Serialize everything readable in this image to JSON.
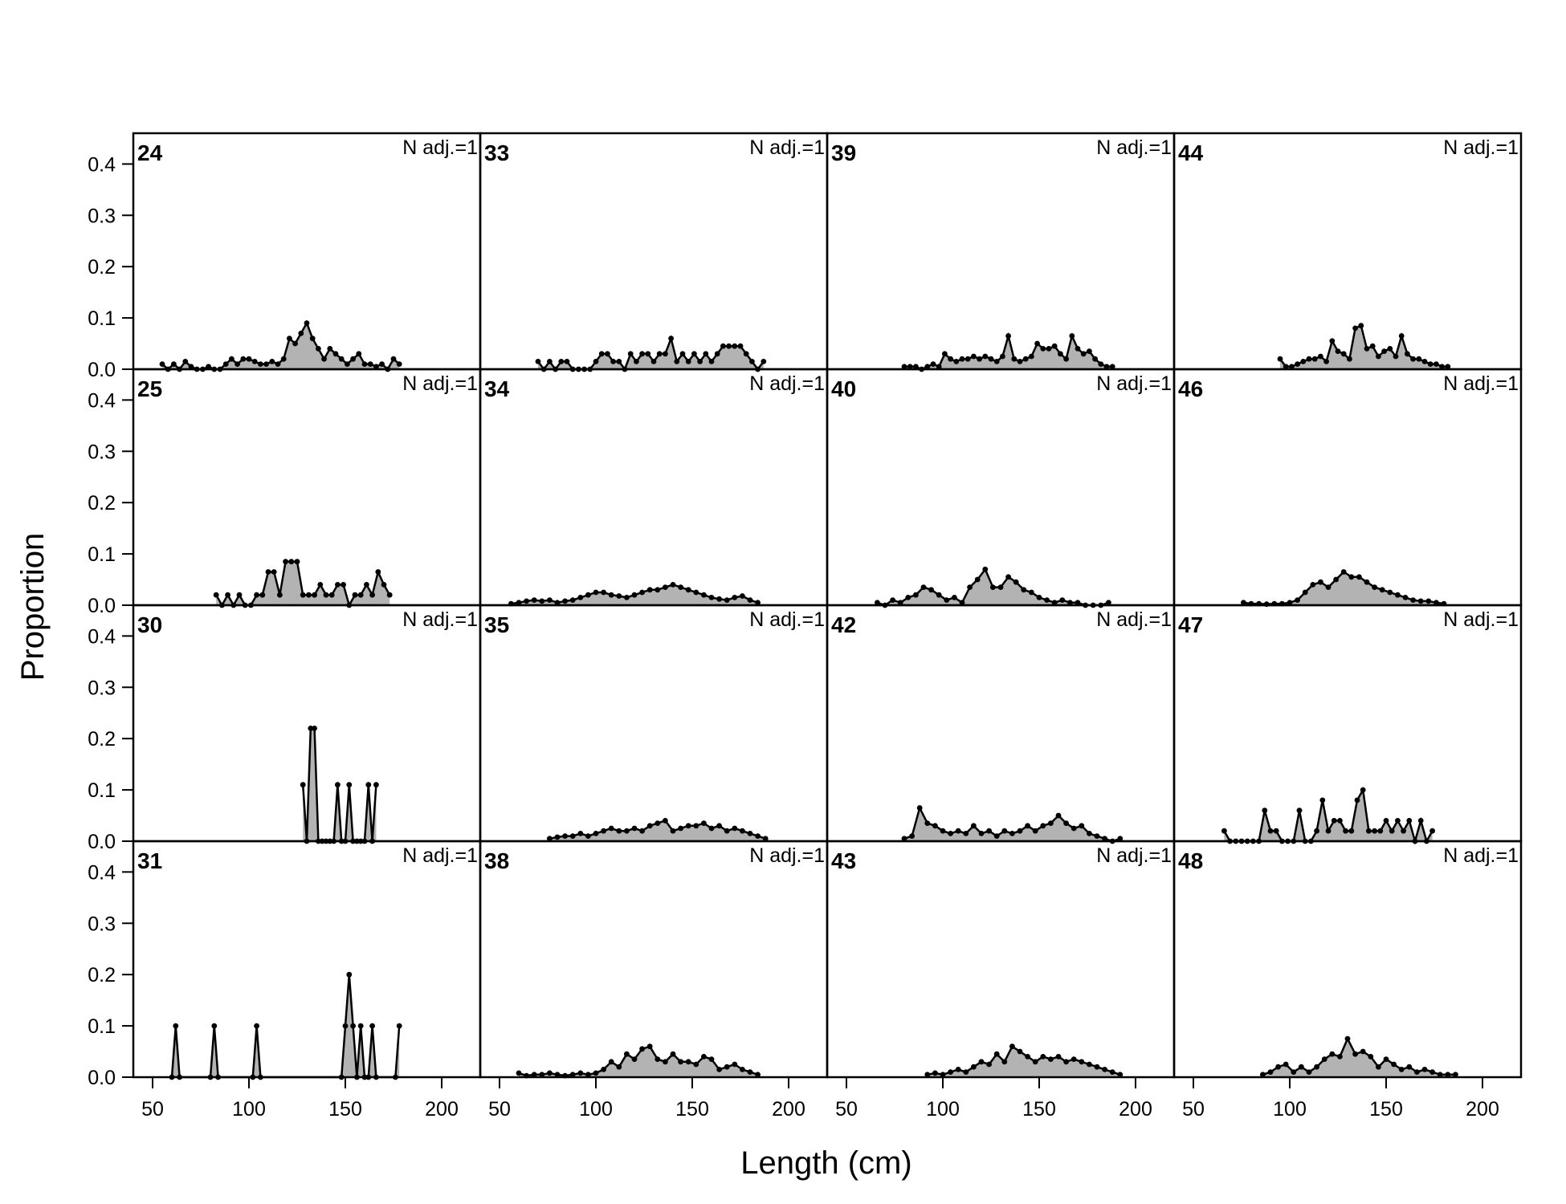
{
  "chart_data": {
    "type": "area",
    "xlabel": "Length (cm)",
    "ylabel": "Proportion",
    "xlim": [
      40,
      220
    ],
    "ylim": [
      0,
      0.46
    ],
    "xticks": [
      50,
      100,
      150,
      200
    ],
    "xtick_labels": [
      "50",
      "100",
      "150",
      "200"
    ],
    "yticks": [
      0.0,
      0.1,
      0.2,
      0.3,
      0.4
    ],
    "ytick_labels": [
      "0.0",
      "0.1",
      "0.2",
      "0.3",
      "0.4"
    ],
    "layout": {
      "rows": 4,
      "cols": 4,
      "order": "column-major"
    },
    "fill_color": "#b3b3b3",
    "line_color": "#000000",
    "panels": [
      {
        "label": "24",
        "annotation": "N adj.=1",
        "x": [
          55,
          58,
          61,
          64,
          67,
          70,
          73,
          76,
          79,
          82,
          85,
          88,
          91,
          94,
          97,
          100,
          103,
          106,
          109,
          112,
          115,
          118,
          121,
          124,
          127,
          130,
          133,
          136,
          139,
          142,
          145,
          148,
          151,
          154,
          157,
          160,
          163,
          166,
          169,
          172,
          175,
          178
        ],
        "y": [
          0.01,
          0.0,
          0.01,
          0.0,
          0.015,
          0.005,
          0.0,
          0.0,
          0.005,
          0.0,
          0.0,
          0.01,
          0.02,
          0.01,
          0.02,
          0.02,
          0.015,
          0.01,
          0.01,
          0.015,
          0.01,
          0.02,
          0.06,
          0.05,
          0.07,
          0.09,
          0.06,
          0.04,
          0.02,
          0.04,
          0.03,
          0.02,
          0.01,
          0.02,
          0.03,
          0.01,
          0.01,
          0.005,
          0.01,
          0.0,
          0.02,
          0.01
        ]
      },
      {
        "label": "25",
        "annotation": "N adj.=1",
        "x": [
          83,
          86,
          89,
          92,
          95,
          98,
          101,
          104,
          107,
          110,
          113,
          116,
          119,
          122,
          125,
          128,
          131,
          134,
          137,
          140,
          143,
          146,
          149,
          152,
          155,
          158,
          161,
          164,
          167,
          170,
          173
        ],
        "y": [
          0.02,
          0.0,
          0.02,
          0.0,
          0.02,
          0.0,
          0.0,
          0.02,
          0.02,
          0.065,
          0.065,
          0.02,
          0.085,
          0.085,
          0.085,
          0.02,
          0.02,
          0.02,
          0.04,
          0.02,
          0.02,
          0.04,
          0.04,
          0.0,
          0.02,
          0.02,
          0.04,
          0.02,
          0.065,
          0.04,
          0.02
        ]
      },
      {
        "label": "30",
        "annotation": "N adj.=1",
        "x": [
          128,
          130,
          132,
          134,
          136,
          138,
          140,
          142,
          144,
          146,
          148,
          150,
          152,
          154,
          156,
          158,
          160,
          162,
          164,
          166
        ],
        "y": [
          0.11,
          0.0,
          0.22,
          0.22,
          0.0,
          0.0,
          0.0,
          0.0,
          0.0,
          0.11,
          0.0,
          0.0,
          0.11,
          0.0,
          0.0,
          0.0,
          0.0,
          0.11,
          0.0,
          0.11
        ]
      },
      {
        "label": "31",
        "annotation": "N adj.=1",
        "x": [
          60,
          62,
          64,
          80,
          82,
          84,
          102,
          104,
          106,
          148,
          150,
          152,
          154,
          156,
          158,
          160,
          162,
          164,
          166,
          176,
          178
        ],
        "y": [
          0.0,
          0.1,
          0.0,
          0.0,
          0.1,
          0.0,
          0.0,
          0.1,
          0.0,
          0.0,
          0.1,
          0.2,
          0.1,
          0.0,
          0.1,
          0.0,
          0.0,
          0.1,
          0.0,
          0.0,
          0.1
        ]
      },
      {
        "label": "33",
        "annotation": "N adj.=1",
        "x": [
          70,
          73,
          76,
          79,
          82,
          85,
          88,
          91,
          94,
          97,
          100,
          103,
          106,
          109,
          112,
          115,
          118,
          121,
          124,
          127,
          130,
          133,
          136,
          139,
          142,
          145,
          148,
          151,
          154,
          157,
          160,
          163,
          166,
          169,
          172,
          175,
          178,
          181,
          184,
          187
        ],
        "y": [
          0.015,
          0.0,
          0.015,
          0.0,
          0.015,
          0.015,
          0.0,
          0.0,
          0.0,
          0.0,
          0.015,
          0.03,
          0.03,
          0.015,
          0.015,
          0.0,
          0.03,
          0.015,
          0.03,
          0.03,
          0.015,
          0.03,
          0.03,
          0.06,
          0.015,
          0.03,
          0.015,
          0.03,
          0.015,
          0.03,
          0.015,
          0.03,
          0.045,
          0.045,
          0.045,
          0.045,
          0.03,
          0.015,
          0.0,
          0.015
        ]
      },
      {
        "label": "34",
        "annotation": "N adj.=1",
        "x": [
          56,
          60,
          64,
          68,
          72,
          76,
          80,
          84,
          88,
          92,
          96,
          100,
          104,
          108,
          112,
          116,
          120,
          124,
          128,
          132,
          136,
          140,
          144,
          148,
          152,
          156,
          160,
          164,
          168,
          172,
          176,
          180,
          184
        ],
        "y": [
          0.003,
          0.005,
          0.008,
          0.01,
          0.008,
          0.01,
          0.005,
          0.008,
          0.01,
          0.015,
          0.02,
          0.025,
          0.025,
          0.02,
          0.018,
          0.015,
          0.02,
          0.025,
          0.03,
          0.03,
          0.035,
          0.04,
          0.035,
          0.03,
          0.025,
          0.02,
          0.015,
          0.012,
          0.01,
          0.015,
          0.018,
          0.01,
          0.005
        ]
      },
      {
        "label": "35",
        "annotation": "N adj.=1",
        "x": [
          76,
          80,
          84,
          88,
          92,
          96,
          100,
          104,
          108,
          112,
          116,
          120,
          124,
          128,
          132,
          136,
          140,
          144,
          148,
          152,
          156,
          160,
          164,
          168,
          172,
          176,
          180,
          184,
          188
        ],
        "y": [
          0.005,
          0.008,
          0.01,
          0.01,
          0.015,
          0.01,
          0.015,
          0.02,
          0.025,
          0.02,
          0.02,
          0.025,
          0.02,
          0.03,
          0.035,
          0.04,
          0.02,
          0.025,
          0.03,
          0.03,
          0.035,
          0.025,
          0.03,
          0.02,
          0.025,
          0.02,
          0.015,
          0.01,
          0.005
        ]
      },
      {
        "label": "38",
        "annotation": "N adj.=1",
        "x": [
          60,
          64,
          68,
          72,
          76,
          80,
          84,
          88,
          92,
          96,
          100,
          104,
          108,
          112,
          116,
          120,
          124,
          128,
          132,
          136,
          140,
          144,
          148,
          152,
          156,
          160,
          164,
          168,
          172,
          176,
          180,
          184
        ],
        "y": [
          0.008,
          0.003,
          0.005,
          0.005,
          0.008,
          0.005,
          0.003,
          0.005,
          0.008,
          0.005,
          0.008,
          0.015,
          0.03,
          0.02,
          0.045,
          0.035,
          0.055,
          0.06,
          0.035,
          0.03,
          0.045,
          0.03,
          0.03,
          0.025,
          0.04,
          0.035,
          0.015,
          0.02,
          0.025,
          0.015,
          0.01,
          0.005
        ]
      },
      {
        "label": "39",
        "annotation": "N adj.=1",
        "x": [
          80,
          83,
          86,
          89,
          92,
          95,
          98,
          101,
          104,
          107,
          110,
          113,
          116,
          119,
          122,
          125,
          128,
          131,
          134,
          137,
          140,
          143,
          146,
          149,
          152,
          155,
          158,
          161,
          164,
          167,
          170,
          173,
          176,
          179,
          182,
          185,
          188
        ],
        "y": [
          0.005,
          0.005,
          0.005,
          0.0,
          0.005,
          0.01,
          0.005,
          0.03,
          0.02,
          0.015,
          0.02,
          0.02,
          0.025,
          0.02,
          0.025,
          0.02,
          0.015,
          0.025,
          0.065,
          0.02,
          0.015,
          0.02,
          0.025,
          0.05,
          0.04,
          0.04,
          0.045,
          0.03,
          0.02,
          0.065,
          0.04,
          0.03,
          0.035,
          0.02,
          0.01,
          0.005,
          0.005
        ]
      },
      {
        "label": "40",
        "annotation": "N adj.=1",
        "x": [
          66,
          70,
          74,
          78,
          82,
          86,
          90,
          94,
          98,
          102,
          106,
          110,
          114,
          118,
          122,
          126,
          130,
          134,
          138,
          142,
          146,
          150,
          154,
          158,
          162,
          166,
          170,
          174,
          178,
          182,
          186
        ],
        "y": [
          0.005,
          0.0,
          0.01,
          0.005,
          0.015,
          0.02,
          0.035,
          0.03,
          0.02,
          0.01,
          0.015,
          0.005,
          0.035,
          0.05,
          0.07,
          0.035,
          0.035,
          0.055,
          0.045,
          0.03,
          0.025,
          0.015,
          0.01,
          0.005,
          0.01,
          0.005,
          0.005,
          0.0,
          0.0,
          0.0,
          0.005
        ]
      },
      {
        "label": "42",
        "annotation": "N adj.=1",
        "x": [
          80,
          84,
          88,
          92,
          96,
          100,
          104,
          108,
          112,
          116,
          120,
          124,
          128,
          132,
          136,
          140,
          144,
          148,
          152,
          156,
          160,
          164,
          168,
          172,
          176,
          180,
          184,
          188,
          192
        ],
        "y": [
          0.005,
          0.01,
          0.065,
          0.035,
          0.03,
          0.02,
          0.015,
          0.02,
          0.015,
          0.03,
          0.015,
          0.02,
          0.01,
          0.02,
          0.015,
          0.02,
          0.03,
          0.02,
          0.03,
          0.035,
          0.05,
          0.035,
          0.025,
          0.03,
          0.015,
          0.01,
          0.005,
          0.0,
          0.005
        ]
      },
      {
        "label": "43",
        "annotation": "N adj.=1",
        "x": [
          92,
          96,
          100,
          104,
          108,
          112,
          116,
          120,
          124,
          128,
          132,
          136,
          140,
          144,
          148,
          152,
          156,
          160,
          164,
          168,
          172,
          176,
          180,
          184,
          188,
          192
        ],
        "y": [
          0.005,
          0.008,
          0.005,
          0.01,
          0.015,
          0.01,
          0.02,
          0.03,
          0.025,
          0.045,
          0.03,
          0.06,
          0.05,
          0.04,
          0.03,
          0.04,
          0.035,
          0.04,
          0.03,
          0.035,
          0.03,
          0.025,
          0.02,
          0.015,
          0.01,
          0.005
        ]
      },
      {
        "label": "44",
        "annotation": "N adj.=1",
        "x": [
          95,
          98,
          101,
          104,
          107,
          110,
          113,
          116,
          119,
          122,
          125,
          128,
          131,
          134,
          137,
          140,
          143,
          146,
          149,
          152,
          155,
          158,
          161,
          164,
          167,
          170,
          173,
          176,
          179,
          182
        ],
        "y": [
          0.02,
          0.005,
          0.005,
          0.01,
          0.015,
          0.02,
          0.02,
          0.025,
          0.015,
          0.055,
          0.035,
          0.03,
          0.02,
          0.08,
          0.085,
          0.04,
          0.045,
          0.025,
          0.035,
          0.04,
          0.025,
          0.065,
          0.03,
          0.02,
          0.02,
          0.015,
          0.01,
          0.01,
          0.005,
          0.005
        ]
      },
      {
        "label": "46",
        "annotation": "N adj.=1",
        "x": [
          76,
          80,
          84,
          88,
          92,
          96,
          100,
          104,
          108,
          112,
          116,
          120,
          124,
          128,
          132,
          136,
          140,
          144,
          148,
          152,
          156,
          160,
          164,
          168,
          172,
          176,
          180
        ],
        "y": [
          0.005,
          0.003,
          0.003,
          0.002,
          0.003,
          0.003,
          0.005,
          0.01,
          0.025,
          0.04,
          0.045,
          0.035,
          0.05,
          0.065,
          0.055,
          0.055,
          0.045,
          0.035,
          0.03,
          0.025,
          0.02,
          0.015,
          0.01,
          0.008,
          0.008,
          0.005,
          0.003
        ]
      },
      {
        "label": "47",
        "annotation": "N adj.=1",
        "x": [
          66,
          69,
          72,
          75,
          78,
          81,
          84,
          87,
          90,
          93,
          96,
          99,
          102,
          105,
          108,
          111,
          114,
          117,
          120,
          123,
          126,
          129,
          132,
          135,
          138,
          141,
          144,
          147,
          150,
          153,
          156,
          159,
          162,
          165,
          168,
          171,
          174
        ],
        "y": [
          0.02,
          0.0,
          0.0,
          0.0,
          0.0,
          0.0,
          0.0,
          0.06,
          0.02,
          0.02,
          0.0,
          0.0,
          0.0,
          0.06,
          0.0,
          0.0,
          0.02,
          0.08,
          0.02,
          0.04,
          0.04,
          0.02,
          0.02,
          0.08,
          0.1,
          0.02,
          0.02,
          0.02,
          0.04,
          0.02,
          0.04,
          0.02,
          0.04,
          0.0,
          0.04,
          0.0,
          0.02
        ]
      },
      {
        "label": "48",
        "annotation": "N adj.=1",
        "x": [
          86,
          90,
          94,
          98,
          102,
          106,
          110,
          114,
          118,
          122,
          126,
          130,
          134,
          138,
          142,
          146,
          150,
          154,
          158,
          162,
          166,
          170,
          174,
          178,
          182,
          186
        ],
        "y": [
          0.005,
          0.01,
          0.02,
          0.025,
          0.01,
          0.02,
          0.01,
          0.02,
          0.035,
          0.045,
          0.04,
          0.075,
          0.045,
          0.05,
          0.04,
          0.02,
          0.035,
          0.025,
          0.015,
          0.02,
          0.01,
          0.015,
          0.01,
          0.005,
          0.005,
          0.005
        ]
      }
    ]
  }
}
